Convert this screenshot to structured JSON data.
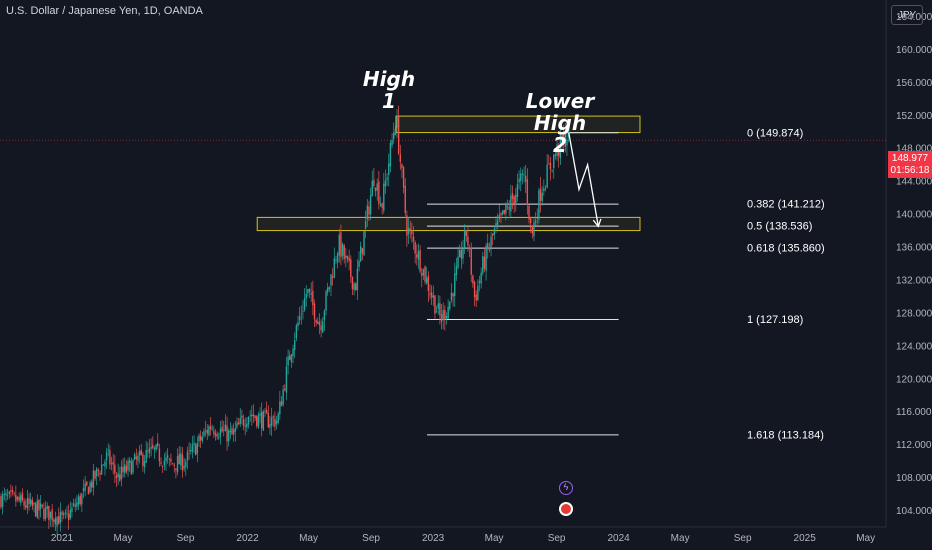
{
  "header": {
    "title": "U.S. Dollar / Japanese Yen, 1D, OANDA",
    "currency_button": "JPY"
  },
  "price_tag": {
    "price": "148.977",
    "countdown": "01:56:18",
    "value": 148.977,
    "color": "#f23645"
  },
  "annotations": {
    "high": {
      "line1": "High",
      "line2": "1"
    },
    "lower_high": {
      "line1": "Lower High",
      "line2": "2"
    }
  },
  "colors": {
    "up": "#26a69a",
    "down": "#ef5350",
    "zone": "#d4c21e",
    "background": "#131722",
    "text": "#d1d4dc"
  },
  "icons": [
    "flash-event-icon",
    "us-flag-event-icon"
  ],
  "chart_data": {
    "type": "candlestick",
    "title": "U.S. Dollar / Japanese Yen, 1D, OANDA",
    "ylim": [
      102,
      166
    ],
    "y_ticks": [
      104,
      108,
      112,
      116,
      120,
      124,
      128,
      132,
      136,
      140,
      144,
      148,
      152,
      156,
      160,
      164
    ],
    "y_tick_labels": [
      "104.000",
      "108.000",
      "112.000",
      "116.000",
      "120.000",
      "124.000",
      "128.000",
      "132.000",
      "136.000",
      "140.000",
      "144.000",
      "148.000",
      "152.000",
      "156.000",
      "160.000",
      "164.000"
    ],
    "x_range": [
      "2020-09-01",
      "2025-06-10"
    ],
    "x_ticks": [
      {
        "date": "2021-01-01",
        "label": "2021"
      },
      {
        "date": "2021-05-01",
        "label": "May"
      },
      {
        "date": "2021-09-01",
        "label": "Sep"
      },
      {
        "date": "2022-01-01",
        "label": "2022"
      },
      {
        "date": "2022-05-01",
        "label": "May"
      },
      {
        "date": "2022-09-01",
        "label": "Sep"
      },
      {
        "date": "2023-01-01",
        "label": "2023"
      },
      {
        "date": "2023-05-01",
        "label": "May"
      },
      {
        "date": "2023-09-01",
        "label": "Sep"
      },
      {
        "date": "2024-01-01",
        "label": "2024"
      },
      {
        "date": "2024-05-01",
        "label": "May"
      },
      {
        "date": "2024-09-01",
        "label": "Sep"
      },
      {
        "date": "2025-01-01",
        "label": "2025"
      },
      {
        "date": "2025-05-01",
        "label": "May"
      }
    ],
    "price_path": [
      [
        "2020-09-01",
        105.5
      ],
      [
        "2020-10-01",
        105.3
      ],
      [
        "2020-11-01",
        104.4
      ],
      [
        "2020-12-01",
        103.8
      ],
      [
        "2021-01-06",
        102.8
      ],
      [
        "2021-02-01",
        105.0
      ],
      [
        "2021-03-01",
        107.5
      ],
      [
        "2021-03-31",
        110.6
      ],
      [
        "2021-04-20",
        108.0
      ],
      [
        "2021-05-25",
        109.9
      ],
      [
        "2021-07-01",
        111.2
      ],
      [
        "2021-08-01",
        109.6
      ],
      [
        "2021-09-01",
        110.0
      ],
      [
        "2021-10-20",
        114.3
      ],
      [
        "2021-12-01",
        113.0
      ],
      [
        "2022-01-03",
        115.8
      ],
      [
        "2022-02-01",
        115.0
      ],
      [
        "2022-03-01",
        115.0
      ],
      [
        "2022-03-28",
        123.8
      ],
      [
        "2022-04-28",
        130.7
      ],
      [
        "2022-05-24",
        126.5
      ],
      [
        "2022-06-29",
        136.5
      ],
      [
        "2022-08-01",
        131.2
      ],
      [
        "2022-09-07",
        144.8
      ],
      [
        "2022-09-22",
        141.0
      ],
      [
        "2022-10-20",
        151.9
      ],
      [
        "2022-11-10",
        138.5
      ],
      [
        "2022-12-01",
        135.3
      ],
      [
        "2022-12-20",
        131.8
      ],
      [
        "2023-01-16",
        127.2
      ],
      [
        "2023-02-01",
        129.0
      ],
      [
        "2023-03-08",
        137.9
      ],
      [
        "2023-03-24",
        129.7
      ],
      [
        "2023-04-10",
        134.0
      ],
      [
        "2023-05-01",
        137.7
      ],
      [
        "2023-05-30",
        140.9
      ],
      [
        "2023-06-30",
        144.9
      ],
      [
        "2023-07-14",
        137.3
      ],
      [
        "2023-08-01",
        143.0
      ],
      [
        "2023-08-30",
        147.4
      ],
      [
        "2023-09-25",
        149.87
      ]
    ],
    "fibonacci": {
      "anchor_start": "2023-01-16",
      "left_start": "2022-12-20",
      "end": "2024-01-01",
      "levels": [
        {
          "ratio": "0",
          "price": 149.874,
          "label": "0 (149.874)"
        },
        {
          "ratio": "0.382",
          "price": 141.212,
          "label": "0.382 (141.212)"
        },
        {
          "ratio": "0.5",
          "price": 138.536,
          "label": "0.5 (138.536)"
        },
        {
          "ratio": "0.618",
          "price": 135.86,
          "label": "0.618 (135.860)"
        },
        {
          "ratio": "1",
          "price": 127.198,
          "label": "1 (127.198)"
        },
        {
          "ratio": "1.618",
          "price": 113.184,
          "label": "1.618 (113.184)"
        }
      ]
    },
    "zones": [
      {
        "name": "upper-zone",
        "start": "2022-10-20",
        "end": "2024-02-12",
        "top": 151.9,
        "bottom": 149.9
      },
      {
        "name": "lower-zone",
        "start": "2022-01-20",
        "end": "2024-02-12",
        "top": 139.6,
        "bottom": 138.0
      }
    ],
    "projection_arrow": [
      [
        "2023-09-25",
        149.87
      ],
      [
        "2023-10-15",
        143.0
      ],
      [
        "2023-11-01",
        146.0
      ],
      [
        "2023-11-22",
        138.5
      ]
    ],
    "current_price": 148.977
  }
}
